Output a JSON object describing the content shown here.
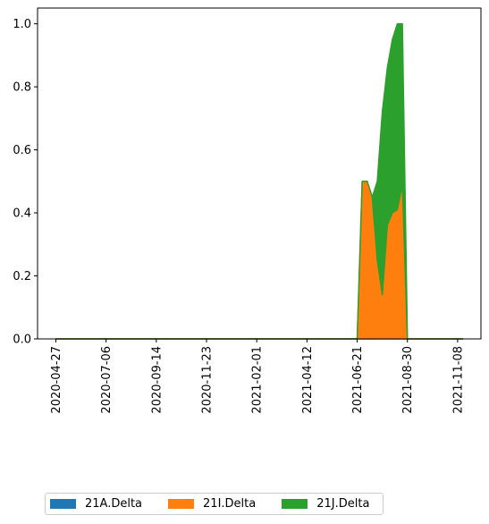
{
  "chart_data": {
    "type": "area",
    "stacked": true,
    "x": [
      "2020-04-27",
      "2020-05-04",
      "2020-05-11",
      "2020-05-18",
      "2020-05-25",
      "2020-06-01",
      "2020-06-08",
      "2020-06-15",
      "2020-06-22",
      "2020-06-29",
      "2020-07-06",
      "2020-07-13",
      "2020-07-20",
      "2020-07-27",
      "2020-08-03",
      "2020-08-10",
      "2020-08-17",
      "2020-08-24",
      "2020-08-31",
      "2020-09-07",
      "2020-09-14",
      "2020-09-21",
      "2020-09-28",
      "2020-10-05",
      "2020-10-12",
      "2020-10-19",
      "2020-10-26",
      "2020-11-02",
      "2020-11-09",
      "2020-11-16",
      "2020-11-23",
      "2020-11-30",
      "2020-12-07",
      "2020-12-14",
      "2020-12-21",
      "2020-12-28",
      "2021-01-04",
      "2021-01-11",
      "2021-01-18",
      "2021-01-25",
      "2021-02-01",
      "2021-02-08",
      "2021-02-15",
      "2021-02-22",
      "2021-03-01",
      "2021-03-08",
      "2021-03-15",
      "2021-03-22",
      "2021-03-29",
      "2021-04-05",
      "2021-04-12",
      "2021-04-19",
      "2021-04-26",
      "2021-05-03",
      "2021-05-10",
      "2021-05-17",
      "2021-05-24",
      "2021-05-31",
      "2021-06-07",
      "2021-06-14",
      "2021-06-21",
      "2021-06-28",
      "2021-07-05",
      "2021-07-12",
      "2021-07-19",
      "2021-07-26",
      "2021-08-02",
      "2021-08-09",
      "2021-08-16",
      "2021-08-23",
      "2021-08-30",
      "2021-09-06",
      "2021-09-13",
      "2021-09-20",
      "2021-09-27",
      "2021-10-04",
      "2021-10-11",
      "2021-10-18",
      "2021-10-25",
      "2021-11-01",
      "2021-11-08",
      "2021-11-15"
    ],
    "series": [
      {
        "name": "21A.Delta",
        "color": "#1f77b4",
        "values": [
          0,
          0,
          0,
          0,
          0,
          0,
          0,
          0,
          0,
          0,
          0,
          0,
          0,
          0,
          0,
          0,
          0,
          0,
          0,
          0,
          0,
          0,
          0,
          0,
          0,
          0,
          0,
          0,
          0,
          0,
          0,
          0,
          0,
          0,
          0,
          0,
          0,
          0,
          0,
          0,
          0,
          0,
          0,
          0,
          0,
          0,
          0,
          0,
          0,
          0,
          0,
          0,
          0,
          0,
          0,
          0,
          0,
          0,
          0,
          0,
          0,
          0,
          0,
          0,
          0,
          0,
          0,
          0,
          0,
          0,
          0,
          0,
          0,
          0,
          0,
          0,
          0,
          0,
          0,
          0,
          0,
          0
        ]
      },
      {
        "name": "21I.Delta",
        "color": "#ff7f0e",
        "values": [
          0,
          0,
          0,
          0,
          0,
          0,
          0,
          0,
          0,
          0,
          0,
          0,
          0,
          0,
          0,
          0,
          0,
          0,
          0,
          0,
          0,
          0,
          0,
          0,
          0,
          0,
          0,
          0,
          0,
          0,
          0,
          0,
          0,
          0,
          0,
          0,
          0,
          0,
          0,
          0,
          0,
          0,
          0,
          0,
          0,
          0,
          0,
          0,
          0,
          0,
          0,
          0,
          0,
          0,
          0,
          0,
          0,
          0,
          0,
          0,
          0,
          0.5,
          0.5,
          0.45,
          0.25,
          0.14,
          0.36,
          0.4,
          0.41,
          0.49,
          0,
          0,
          0,
          0,
          0,
          0,
          0,
          0,
          0,
          0,
          0,
          0
        ]
      },
      {
        "name": "21J.Delta",
        "color": "#2ca02c",
        "values": [
          0,
          0,
          0,
          0,
          0,
          0,
          0,
          0,
          0,
          0,
          0,
          0,
          0,
          0,
          0,
          0,
          0,
          0,
          0,
          0,
          0,
          0,
          0,
          0,
          0,
          0,
          0,
          0,
          0,
          0,
          0,
          0,
          0,
          0,
          0,
          0,
          0,
          0,
          0,
          0,
          0,
          0,
          0,
          0,
          0,
          0,
          0,
          0,
          0,
          0,
          0,
          0,
          0,
          0,
          0,
          0,
          0,
          0,
          0,
          0,
          0,
          0,
          0,
          0,
          0.25,
          0.58,
          0.5,
          0.55,
          0.59,
          0.51,
          0,
          0,
          0,
          0,
          0,
          0,
          0,
          0,
          0,
          0,
          0,
          0
        ]
      }
    ],
    "xticks": [
      "2020-04-27",
      "2020-07-06",
      "2020-09-14",
      "2020-11-23",
      "2021-02-01",
      "2021-04-12",
      "2021-06-21",
      "2021-08-30",
      "2021-11-08"
    ],
    "yticks": [
      "0.0",
      "0.2",
      "0.4",
      "0.6",
      "0.8",
      "1.0"
    ],
    "ylim": [
      0,
      1.05
    ],
    "legend_position": "below",
    "grid": false
  }
}
